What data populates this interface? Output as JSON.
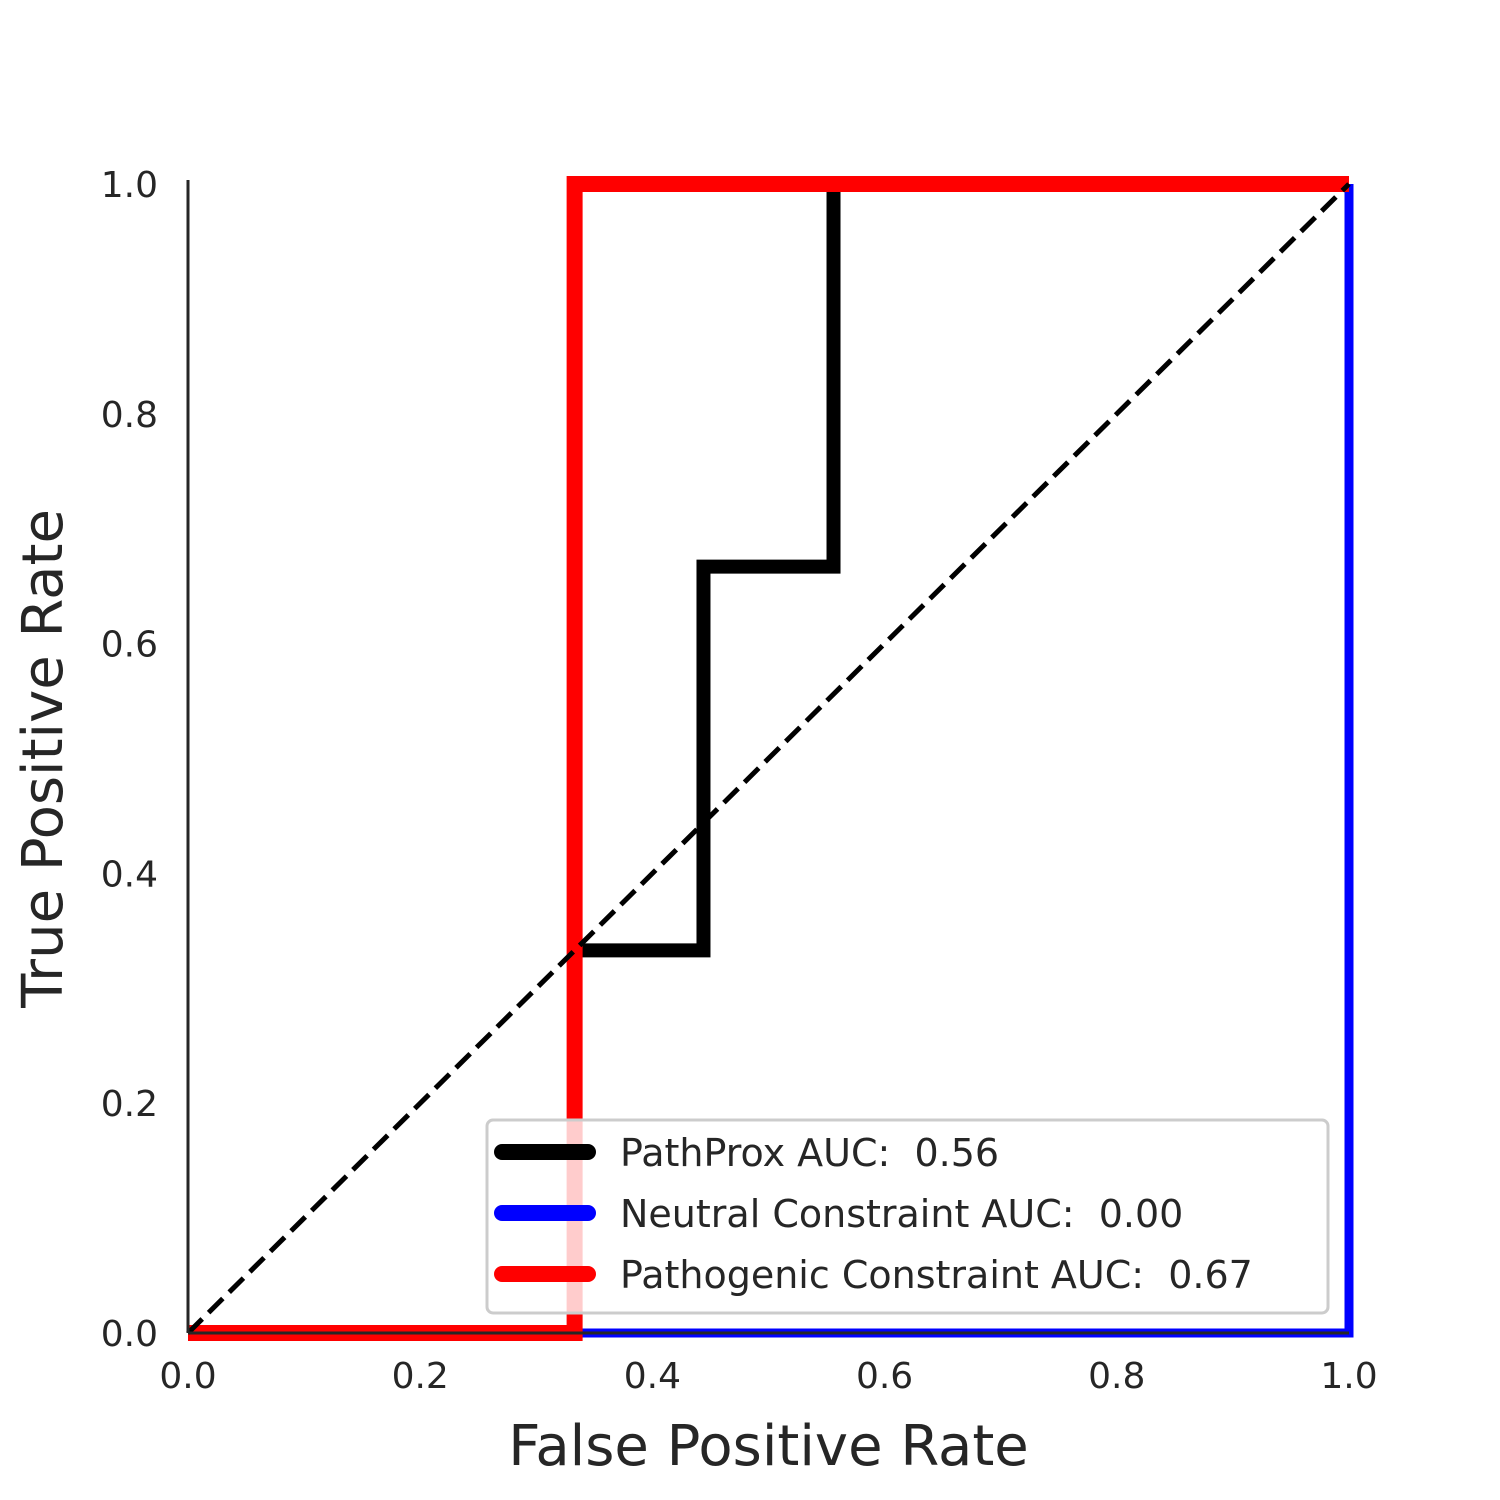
{
  "chart_data": {
    "type": "line",
    "title": "",
    "xlabel": "False Positive Rate",
    "ylabel": "True Positive Rate",
    "xlim": [
      0,
      1
    ],
    "ylim": [
      0,
      1
    ],
    "xticks": [
      "0.0",
      "0.2",
      "0.4",
      "0.6",
      "0.8",
      "1.0"
    ],
    "yticks": [
      "0.0",
      "0.2",
      "0.4",
      "0.6",
      "0.8",
      "1.0"
    ],
    "grid": false,
    "legend_position": "lower-right",
    "series": [
      {
        "name": "PathProx AUC:  0.56",
        "color": "#000000",
        "x": [
          0,
          0.333,
          0.333,
          0.444,
          0.444,
          0.556,
          0.556,
          1.0
        ],
        "y": [
          0,
          0,
          0.333,
          0.333,
          0.667,
          0.667,
          1.0,
          1.0
        ]
      },
      {
        "name": "Neutral Constraint AUC:  0.00",
        "color": "#0000ff",
        "x": [
          0,
          1.0,
          1.0
        ],
        "y": [
          0,
          0,
          1.0
        ]
      },
      {
        "name": "Pathogenic Constraint AUC:  0.67",
        "color": "#ff0000",
        "x": [
          0,
          0.333,
          0.333,
          1.0
        ],
        "y": [
          0,
          0,
          1.0,
          1.0
        ]
      }
    ],
    "reference_line": {
      "style": "dashed",
      "color": "#000000",
      "x": [
        0,
        1
      ],
      "y": [
        0,
        1
      ]
    }
  }
}
